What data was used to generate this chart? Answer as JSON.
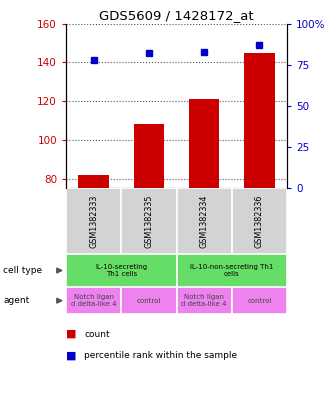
{
  "title": "GDS5609 / 1428172_at",
  "samples": [
    "GSM1382333",
    "GSM1382335",
    "GSM1382334",
    "GSM1382336"
  ],
  "bar_values": [
    82,
    108,
    121,
    145
  ],
  "bar_color": "#cc0000",
  "dot_values": [
    78,
    82,
    83,
    87
  ],
  "dot_color": "#0000cc",
  "ylim_left": [
    75,
    160
  ],
  "ylim_right": [
    0,
    100
  ],
  "yticks_left": [
    80,
    100,
    120,
    140,
    160
  ],
  "yticks_right": [
    0,
    25,
    50,
    75,
    100
  ],
  "ytick_labels_right": [
    "0",
    "25",
    "50",
    "75",
    "100%"
  ],
  "left_tick_color": "#cc0000",
  "right_tick_color": "#0000cc",
  "sample_bg_color": "#d3d3d3",
  "grid_color": "#555555",
  "legend_count_color": "#cc0000",
  "legend_dot_color": "#0000cc",
  "cell_type_color": "#66dd66",
  "agent_color": "#ee82ee"
}
